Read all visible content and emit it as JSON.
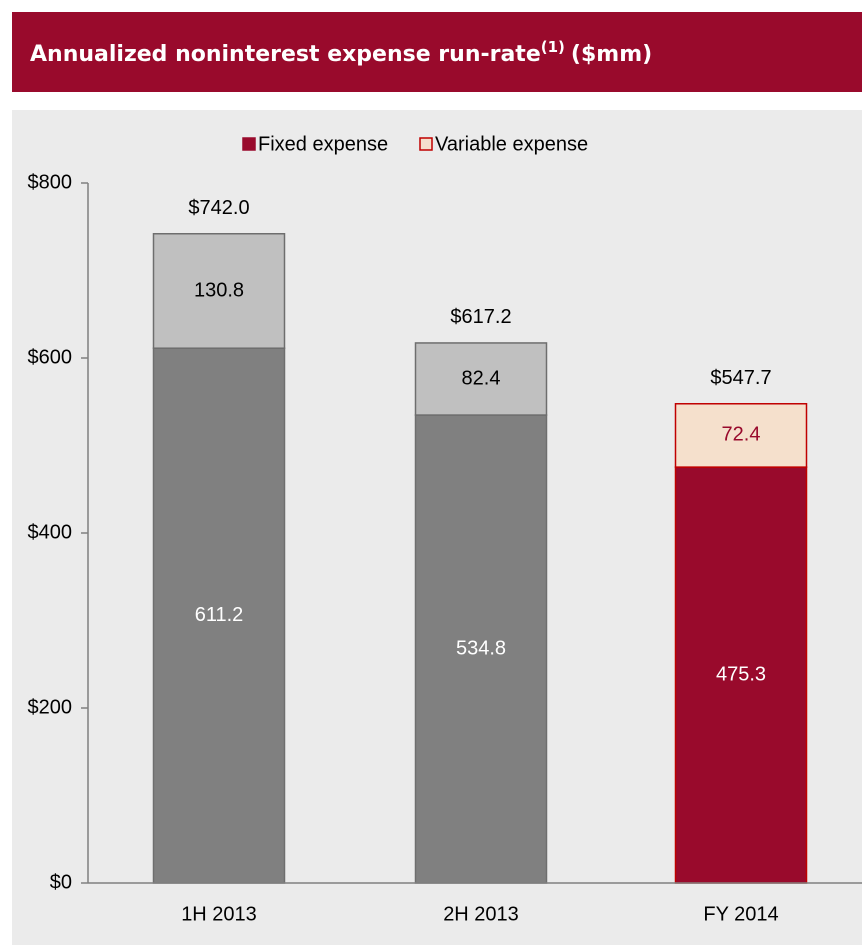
{
  "chart_data": {
    "type": "stacked-bar",
    "title": "Annualized noninterest expense run-rate",
    "title_superscript": "(1)",
    "title_suffix": "($mm)",
    "categories": [
      "1H 2013",
      "2H 2013",
      "FY 2014"
    ],
    "series": [
      {
        "name": "Fixed expense",
        "color": "#990a2c",
        "values": [
          611.2,
          534.8,
          475.3
        ],
        "bar_colors": [
          "#808080",
          "#808080",
          "#990a2c"
        ],
        "bar_strokes": [
          "#6e6e6e",
          "#6e6e6e",
          "#c00000"
        ],
        "label_colors": [
          "#ffffff",
          "#ffffff",
          "#ffffff"
        ]
      },
      {
        "name": "Variable expense",
        "color": "#f5e0cc",
        "values": [
          130.8,
          82.4,
          72.4
        ],
        "bar_colors": [
          "#c0c0c0",
          "#c0c0c0",
          "#f5e0cc"
        ],
        "bar_strokes": [
          "#6e6e6e",
          "#6e6e6e",
          "#c00000"
        ],
        "label_colors": [
          "#000000",
          "#000000",
          "#990a2c"
        ]
      }
    ],
    "totals": [
      742.0,
      617.2,
      547.7
    ],
    "total_labels": [
      "$742.0",
      "$617.2",
      "$547.7"
    ],
    "ylim": [
      0,
      800
    ],
    "yticks": [
      {
        "value": 0,
        "label": "$0"
      },
      {
        "value": 200,
        "label": "$200"
      },
      {
        "value": 400,
        "label": "$400"
      },
      {
        "value": 600,
        "label": "$600"
      },
      {
        "value": 800,
        "label": "$800"
      }
    ],
    "legend": "top"
  }
}
